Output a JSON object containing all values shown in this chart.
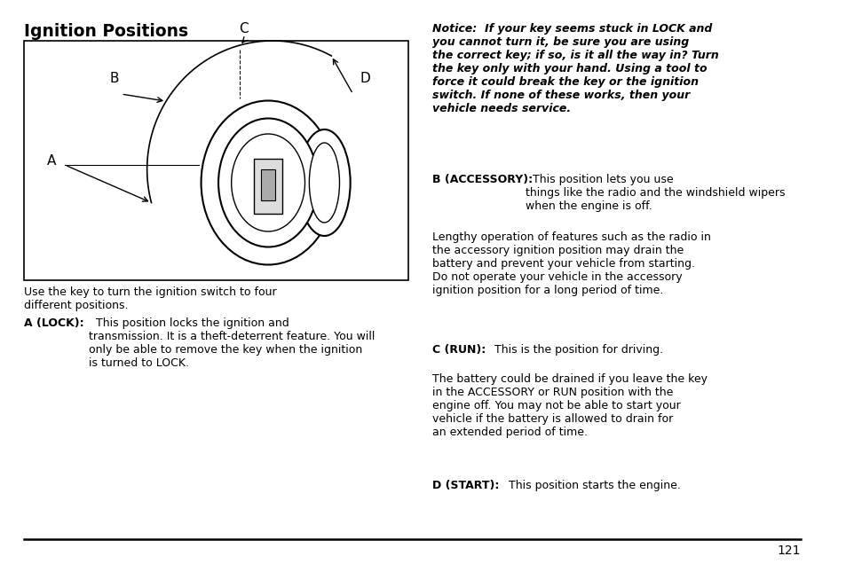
{
  "bg_color": "#ffffff",
  "title": "Ignition Positions",
  "page_number": "121",
  "notice_bold_text": "Notice:  If your key seems stuck in LOCK and\nyou cannot turn it, be sure you are using\nthe correct key; if so, is it all the way in? Turn\nthe key only with your hand. Using a tool to\nforce it could break the key or the ignition\nswitch. If none of these works, then your\nvehicle needs service.",
  "b_label": "B (ACCESSORY):",
  "b_text": "  This position lets you use\nthings like the radio and the windshield wipers\nwhen the engine is off.",
  "b2_text": "Lengthy operation of features such as the radio in\nthe accessory ignition position may drain the\nbattery and prevent your vehicle from starting.\nDo not operate your vehicle in the accessory\nignition position for a long period of time.",
  "c_label": "C (RUN):",
  "c_text": "  This is the position for driving.",
  "c2_text": "The battery could be drained if you leave the key\nin the ACCESSORY or RUN position with the\nengine off. You may not be able to start your\nvehicle if the battery is allowed to drain for\nan extended period of time.",
  "d_label": "D (START):",
  "d_text": "  This position starts the engine.",
  "use_text": "Use the key to turn the ignition switch to four\ndifferent positions.",
  "a_label": "A (LOCK):",
  "a_text": "  This position locks the ignition and\ntransmission. It is a theft-deterrent feature. You will\nonly be able to remove the key when the ignition\nis turned to LOCK."
}
